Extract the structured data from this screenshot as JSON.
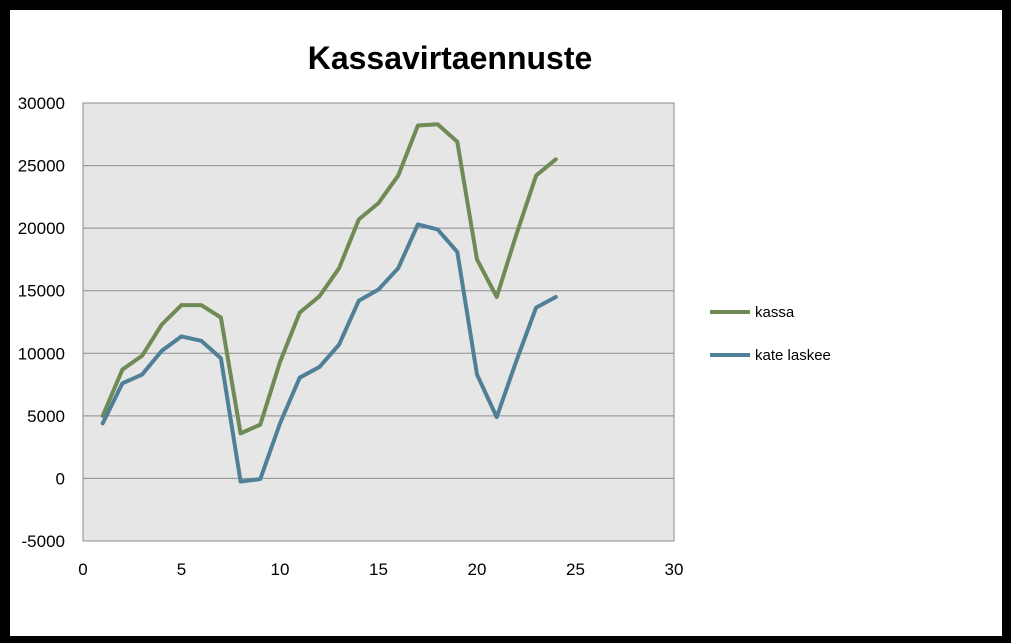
{
  "chart_data": {
    "type": "line",
    "title": "Kassavirtaennuste",
    "xlabel": "",
    "ylabel": "",
    "xlim": [
      0,
      30
    ],
    "ylim": [
      -5000,
      30000
    ],
    "x_ticks": [
      "0",
      "5",
      "10",
      "15",
      "20",
      "25",
      "30"
    ],
    "y_ticks": [
      "30000",
      "25000",
      "20000",
      "15000",
      "10000",
      "5000",
      "0",
      "-5000"
    ],
    "grid": true,
    "legend_position": "right",
    "plot_background": "#e6e6e6",
    "x": [
      1,
      2,
      3,
      4,
      5,
      6,
      7,
      8,
      9,
      10,
      11,
      12,
      13,
      14,
      15,
      16,
      17,
      18,
      19,
      20,
      21,
      22,
      23,
      24
    ],
    "series": [
      {
        "name": "kassa",
        "color": "#6f8a55",
        "values": [
          5000,
          8700,
          9800,
          12300,
          13850,
          13850,
          12850,
          3600,
          4300,
          9300,
          13250,
          14550,
          16800,
          20700,
          22000,
          24200,
          28200,
          28300,
          26900,
          17500,
          14500,
          19500,
          24200,
          25500
        ]
      },
      {
        "name": "kate laskee",
        "color": "#4f8098",
        "values": [
          4400,
          7600,
          8300,
          10200,
          11350,
          11000,
          9600,
          -250,
          -50,
          4400,
          8050,
          8900,
          10700,
          14200,
          15100,
          16800,
          20300,
          19900,
          18100,
          8300,
          4900,
          9400,
          13650,
          14500
        ]
      }
    ]
  }
}
